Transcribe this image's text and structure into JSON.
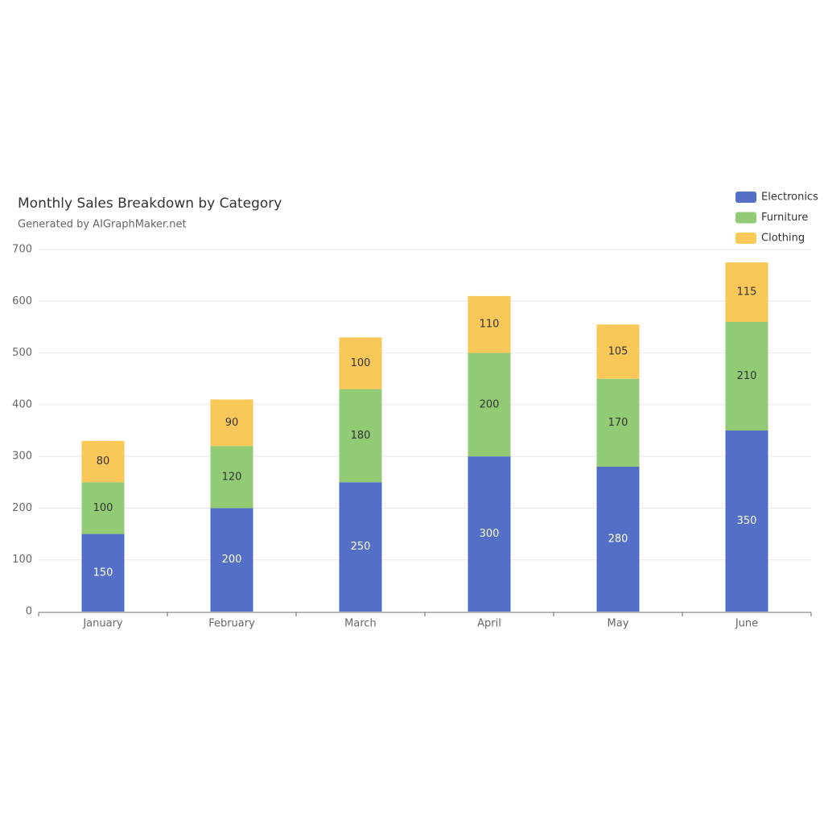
{
  "chart_data": {
    "type": "stacked_bar",
    "title": "Monthly Sales Breakdown by Category",
    "subtitle": "Generated by AIGraphMaker.net",
    "categories": [
      "January",
      "February",
      "March",
      "April",
      "May",
      "June"
    ],
    "series": [
      {
        "name": "Electronics",
        "color": "#5470c6",
        "values": [
          150,
          200,
          250,
          300,
          280,
          350
        ]
      },
      {
        "name": "Furniture",
        "color": "#91cc75",
        "values": [
          100,
          120,
          180,
          200,
          170,
          210
        ]
      },
      {
        "name": "Clothing",
        "color": "#fac858",
        "values": [
          80,
          90,
          100,
          110,
          105,
          115
        ]
      }
    ],
    "ylim": [
      0,
      700
    ],
    "yticks": [
      0,
      100,
      200,
      300,
      400,
      500,
      600,
      700
    ],
    "grid": true,
    "legend": "top-right"
  }
}
